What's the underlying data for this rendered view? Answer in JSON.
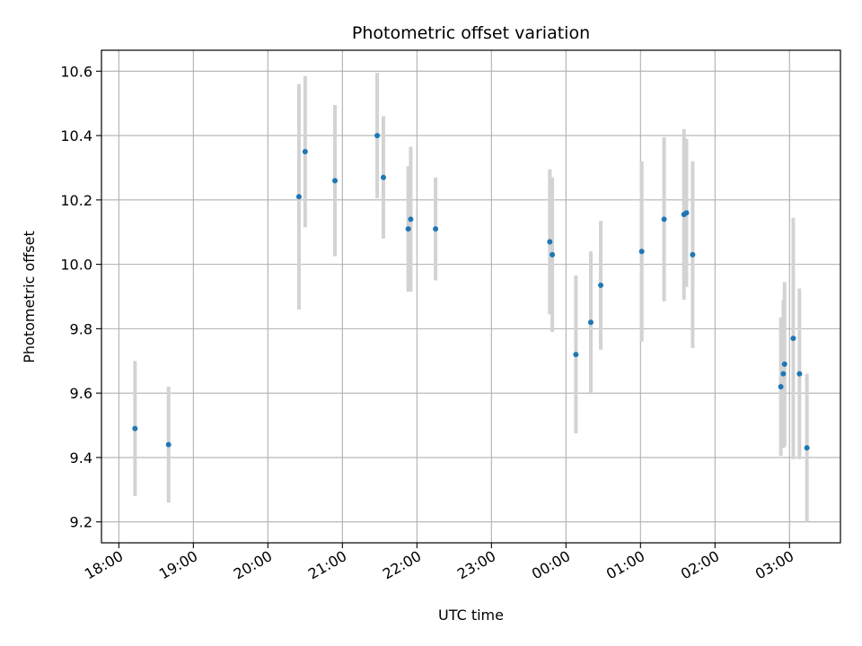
{
  "chart_data": {
    "type": "scatter",
    "title": "Photometric offset variation",
    "xlabel": "UTC time",
    "ylabel": "Photometric offset",
    "grid": true,
    "legend": "none",
    "x_axis": "time",
    "x_range": [
      "2000-01-01T17:46",
      "2000-01-02T03:41"
    ],
    "y_range": [
      9.135,
      10.665
    ],
    "x_ticks": [
      {
        "time": "2000-01-01T18:00",
        "label": "18:00"
      },
      {
        "time": "2000-01-01T19:00",
        "label": "19:00"
      },
      {
        "time": "2000-01-01T20:00",
        "label": "20:00"
      },
      {
        "time": "2000-01-01T21:00",
        "label": "21:00"
      },
      {
        "time": "2000-01-01T22:00",
        "label": "22:00"
      },
      {
        "time": "2000-01-01T23:00",
        "label": "23:00"
      },
      {
        "time": "2000-01-02T00:00",
        "label": "00:00"
      },
      {
        "time": "2000-01-02T01:00",
        "label": "01:00"
      },
      {
        "time": "2000-01-02T02:00",
        "label": "02:00"
      },
      {
        "time": "2000-01-02T03:00",
        "label": "03:00"
      }
    ],
    "y_ticks": [
      {
        "value": 9.2,
        "label": "9.2"
      },
      {
        "value": 9.4,
        "label": "9.4"
      },
      {
        "value": 9.6,
        "label": "9.6"
      },
      {
        "value": 9.8,
        "label": "9.8"
      },
      {
        "value": 10.0,
        "label": "10.0"
      },
      {
        "value": 10.2,
        "label": "10.2"
      },
      {
        "value": 10.4,
        "label": "10.4"
      },
      {
        "value": 10.6,
        "label": "10.6"
      }
    ],
    "colors": {
      "point": "#1f77b4",
      "errorbar": "#d3d3d3",
      "grid": "#b0b0b0",
      "axis": "#000000"
    },
    "points": [
      {
        "time": "2000-01-01T18:13",
        "y": 9.49,
        "err": 0.21
      },
      {
        "time": "2000-01-01T18:40",
        "y": 9.44,
        "err": 0.18
      },
      {
        "time": "2000-01-01T20:25",
        "y": 10.21,
        "err": 0.35
      },
      {
        "time": "2000-01-01T20:30",
        "y": 10.35,
        "err": 0.235
      },
      {
        "time": "2000-01-01T20:54",
        "y": 10.26,
        "err": 0.235
      },
      {
        "time": "2000-01-01T21:28",
        "y": 10.4,
        "err": 0.195
      },
      {
        "time": "2000-01-01T21:33",
        "y": 10.27,
        "err": 0.19
      },
      {
        "time": "2000-01-01T21:53",
        "y": 10.11,
        "err": 0.195
      },
      {
        "time": "2000-01-01T21:55",
        "y": 10.14,
        "err": 0.225
      },
      {
        "time": "2000-01-01T22:15",
        "y": 10.11,
        "err": 0.16
      },
      {
        "time": "2000-01-01T23:47",
        "y": 10.07,
        "err": 0.225
      },
      {
        "time": "2000-01-01T23:49",
        "y": 10.03,
        "err": 0.24
      },
      {
        "time": "2000-01-02T00:08",
        "y": 9.72,
        "err": 0.245
      },
      {
        "time": "2000-01-02T00:20",
        "y": 9.82,
        "err": 0.22
      },
      {
        "time": "2000-01-02T00:28",
        "y": 9.935,
        "err": 0.2
      },
      {
        "time": "2000-01-02T01:01",
        "y": 10.04,
        "err": 0.28
      },
      {
        "time": "2000-01-02T01:19",
        "y": 10.14,
        "err": 0.255
      },
      {
        "time": "2000-01-02T01:35",
        "y": 10.155,
        "err": 0.265
      },
      {
        "time": "2000-01-02T01:37",
        "y": 10.16,
        "err": 0.23
      },
      {
        "time": "2000-01-02T01:42",
        "y": 10.03,
        "err": 0.29
      },
      {
        "time": "2000-01-02T02:53",
        "y": 9.62,
        "err": 0.215
      },
      {
        "time": "2000-01-02T02:55",
        "y": 9.66,
        "err": 0.23
      },
      {
        "time": "2000-01-02T02:56",
        "y": 9.69,
        "err": 0.255
      },
      {
        "time": "2000-01-02T03:03",
        "y": 9.77,
        "err": 0.375
      },
      {
        "time": "2000-01-02T03:08",
        "y": 9.66,
        "err": 0.265
      },
      {
        "time": "2000-01-02T03:14",
        "y": 9.43,
        "err": 0.23
      }
    ]
  }
}
